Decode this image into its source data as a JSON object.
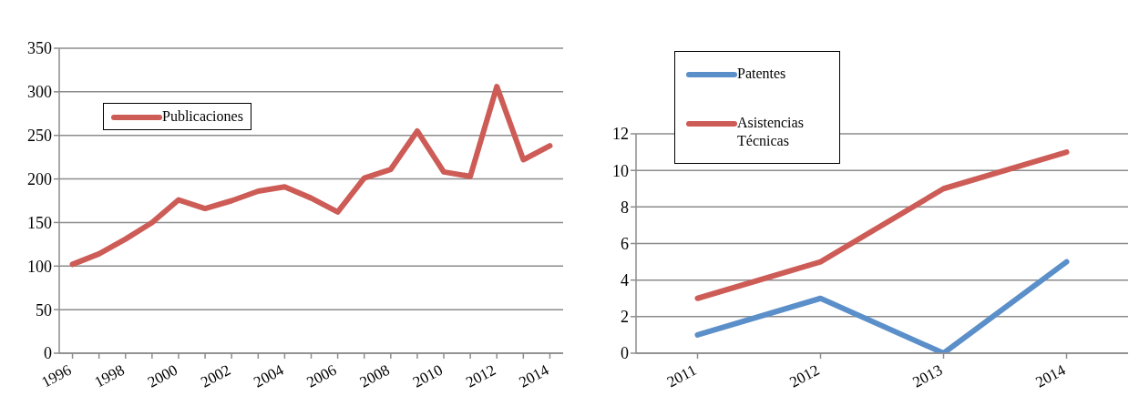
{
  "chart_data": [
    {
      "type": "line",
      "categories": [
        "1996",
        null,
        "1998",
        null,
        "2000",
        null,
        "2002",
        null,
        "2004",
        null,
        "2006",
        null,
        "2008",
        null,
        "2010",
        null,
        "2012",
        null,
        "2014"
      ],
      "series": [
        {
          "name": "Publicaciones",
          "color": "#cd5c57",
          "values": [
            102,
            114,
            131,
            150,
            176,
            166,
            175,
            186,
            191,
            178,
            162,
            201,
            211,
            255,
            208,
            203,
            306,
            222,
            238
          ]
        }
      ],
      "ylim": [
        0,
        350
      ],
      "yticks": [
        0,
        50,
        100,
        150,
        200,
        250,
        300,
        350
      ],
      "grid": "y",
      "legend": "top left"
    },
    {
      "type": "line",
      "categories": [
        "2011",
        "2012",
        "2013",
        "2014"
      ],
      "series": [
        {
          "name": "Patentes",
          "color": "#5b8fc9",
          "values": [
            1,
            3,
            0,
            5
          ]
        },
        {
          "name": "Asistencias Técnicas",
          "color": "#cd5c57",
          "values": [
            3,
            5,
            9,
            11
          ]
        }
      ],
      "ylim": [
        0,
        12
      ],
      "yticks": [
        0,
        2,
        4,
        6,
        8,
        10,
        12
      ],
      "grid": "y",
      "legend": "top left"
    }
  ]
}
